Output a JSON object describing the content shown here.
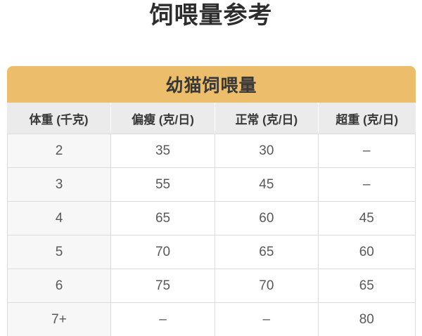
{
  "page": {
    "title": "饲喂量参考"
  },
  "feeding_table": {
    "title": "幼猫饲喂量",
    "columns": [
      "体重 (千克)",
      "偏瘦 (克/日)",
      "正常 (克/日)",
      "超重 (克/日)"
    ],
    "rows": [
      [
        "2",
        "35",
        "30",
        "–"
      ],
      [
        "3",
        "55",
        "45",
        "–"
      ],
      [
        "4",
        "65",
        "60",
        "45"
      ],
      [
        "5",
        "70",
        "65",
        "60"
      ],
      [
        "6",
        "75",
        "70",
        "65"
      ],
      [
        "7+",
        "–",
        "–",
        "80"
      ]
    ]
  },
  "colors": {
    "accent_band": "#ECBE6C",
    "header_bg": "#EBEBEB",
    "first_column_bg": "#F7F7F7",
    "border": "#DBDBDB",
    "title_text": "#2D2D2D",
    "data_text": "#595959"
  }
}
